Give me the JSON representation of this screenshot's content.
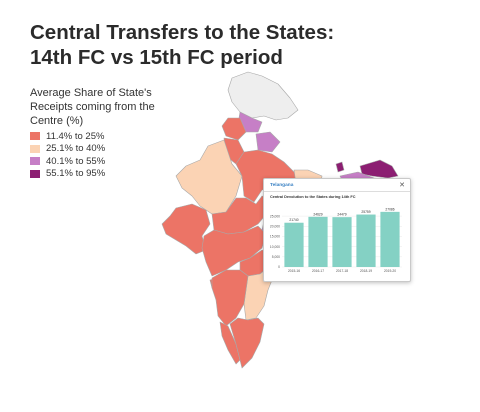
{
  "title": "Central Transfers to the States: 14th FC vs 15th FC period",
  "legend": {
    "heading": "Average Share of State's Receipts coming from the Centre (%)",
    "items": [
      {
        "label": "11.4% to 25%",
        "color": "#ec7466"
      },
      {
        "label": "25.1% to 40%",
        "color": "#fbd3b4"
      },
      {
        "label": "40.1% to 55%",
        "color": "#c67fc6"
      },
      {
        "label": "55.1% to 95%",
        "color": "#8c1e72"
      }
    ]
  },
  "map_colors": {
    "nodata": "#eeeeee",
    "border": "#a8a8a8"
  },
  "popup": {
    "state": "Telangana",
    "close_label": "✕",
    "chart_data": {
      "type": "bar",
      "title": "Central Devolution to the States during 14th FC",
      "categories": [
        "2015-16",
        "2016-17",
        "2017-18",
        "2018-19",
        "2019-20"
      ],
      "values": [
        21740,
        24629,
        24479,
        25759,
        27086
      ],
      "value_labels": [
        "21740",
        "24629",
        "24479",
        "25759",
        "27086"
      ],
      "ylim": [
        0,
        27500
      ],
      "y_ticks": [
        0,
        5000,
        10000,
        15000,
        20000,
        25000
      ],
      "y_tick_labels": [
        "0",
        "5,000",
        "10,000",
        "15,000",
        "20,000",
        "25,000"
      ],
      "bar_color": "#84d1c4"
    }
  }
}
